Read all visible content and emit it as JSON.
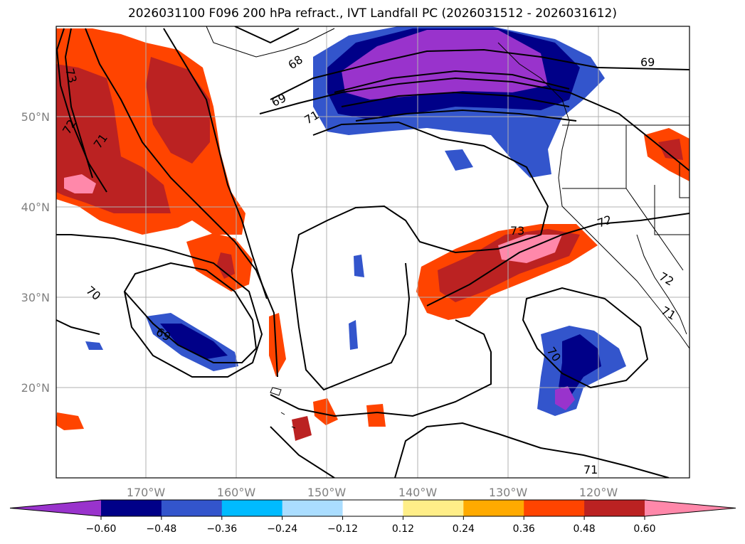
{
  "title": "2026031100 F096 200 hPa refract., IVT Landfall PC (2026031512 - 2026031612)",
  "map": {
    "lon_min": -180,
    "lon_max": -110,
    "lat_min": 10,
    "lat_max": 60,
    "lat_ticks": [
      {
        "value": 20,
        "label": "20°N"
      },
      {
        "value": 30,
        "label": "30°N"
      },
      {
        "value": 40,
        "label": "40°N"
      },
      {
        "value": 50,
        "label": "50°N"
      }
    ],
    "lon_ticks": [
      {
        "value": -170,
        "label": "170°W"
      },
      {
        "value": -160,
        "label": "160°W"
      },
      {
        "value": -150,
        "label": "150°W"
      },
      {
        "value": -140,
        "label": "140°W"
      },
      {
        "value": -130,
        "label": "130°W"
      },
      {
        "value": -120,
        "label": "120°W"
      }
    ],
    "contour_labels": [
      "73",
      "72",
      "71",
      "68",
      "69",
      "71",
      "69",
      "73",
      "72",
      "70",
      "69",
      "70",
      "72",
      "71",
      "71"
    ]
  },
  "colorbar": {
    "colors": [
      "#9933cc",
      "#000088",
      "#3355cc",
      "#00bbff",
      "#aaddff",
      "#ffffff",
      "#ffee88",
      "#ffaa00",
      "#ff4400",
      "#bb2222",
      "#ff88aa"
    ],
    "ticks": [
      "−0.60",
      "−0.48",
      "−0.36",
      "−0.24",
      "−0.12",
      "0.12",
      "0.24",
      "0.36",
      "0.48",
      "0.60"
    ]
  }
}
